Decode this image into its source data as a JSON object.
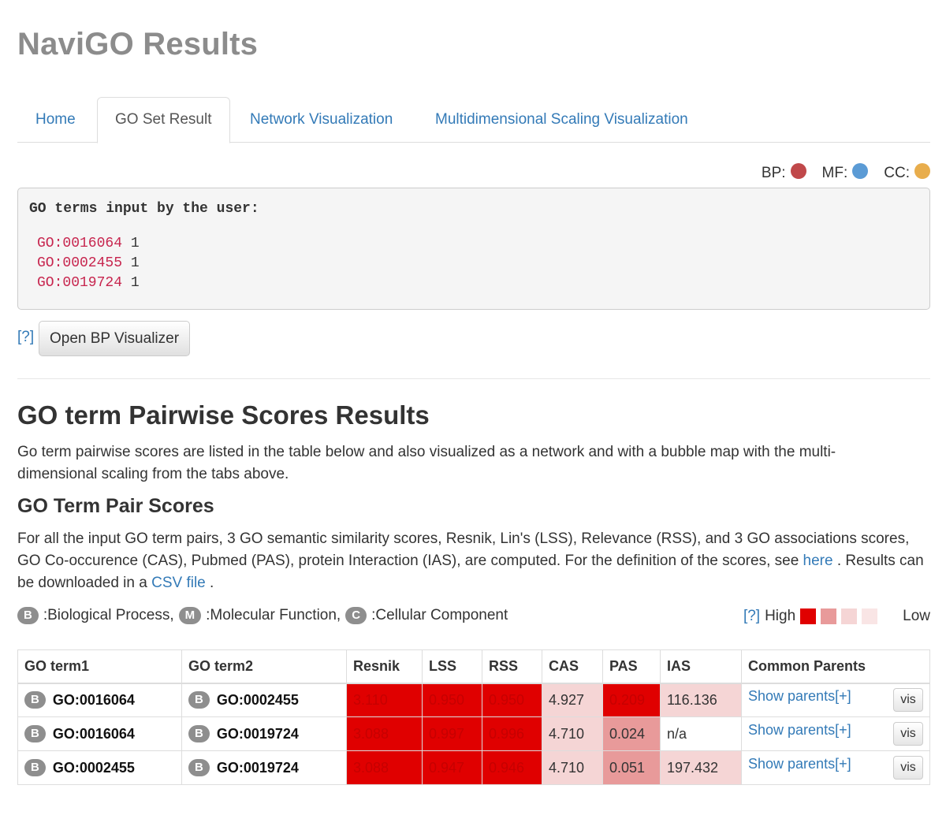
{
  "app_title": "NaviGO Results",
  "tabs": [
    {
      "label": "Home"
    },
    {
      "label": "GO Set Result"
    },
    {
      "label": "Network Visualization"
    },
    {
      "label": "Multidimensional Scaling Visualization"
    }
  ],
  "legend": {
    "bp_label": "BP:",
    "bp_color": "#c0484a",
    "mf_label": "MF:",
    "mf_color": "#5b9bd5",
    "cc_label": "CC:",
    "cc_color": "#e8ad4c"
  },
  "input_box": {
    "header": "GO terms input by the user:",
    "lines": [
      {
        "id": "GO:0016064",
        "value": "1"
      },
      {
        "id": "GO:0002455",
        "value": "1"
      },
      {
        "id": "GO:0019724",
        "value": "1"
      }
    ]
  },
  "help_label": "[?]",
  "open_bp_button": "Open BP Visualizer",
  "section_title": "GO term Pairwise Scores Results",
  "section_desc": "Go term pairwise scores are listed in the table below and also visualized as a network and with a bubble map with the multi-dimensional scaling from the tabs above.",
  "sub_title": "GO Term Pair Scores",
  "desc2": {
    "part1": "For all the input GO term pairs, 3 GO semantic similarity scores, Resnik, Lin's (LSS), Relevance (RSS), and 3 GO associations scores, GO Co-occurence (CAS), Pubmed (PAS), protein Interaction (IAS), are computed. For the definition of the scores, see ",
    "here_link": "here",
    "part2": " . Results can be downloaded in a ",
    "csv_link": "CSV file",
    "part3": " ."
  },
  "ontology_legend": {
    "b_badge": "B",
    "b_label": ":Biological Process,",
    "m_badge": "M",
    "m_label": ":Molecular Function,",
    "c_badge": "C",
    "c_label": ":Cellular Component"
  },
  "scale_legend": {
    "help": "[?]",
    "high": "High",
    "low": "Low",
    "colors": [
      "#e00000",
      "#e89a9a",
      "#f5d5d5",
      "#f9e5e5"
    ]
  },
  "table": {
    "headers": [
      "GO term1",
      "GO term2",
      "Resnik",
      "LSS",
      "RSS",
      "CAS",
      "PAS",
      "IAS",
      "Common Parents"
    ],
    "show_parents": "Show parents[+]",
    "vis": "vis",
    "rows": [
      {
        "b1": "B",
        "term1": "GO:0016064",
        "b2": "B",
        "term2": "GO:0002455",
        "resnik": "3.110",
        "lss": "0.950",
        "rss": "0.950",
        "cas": "4.927",
        "pas": "0.209",
        "ias": "116.136"
      },
      {
        "b1": "B",
        "term1": "GO:0016064",
        "b2": "B",
        "term2": "GO:0019724",
        "resnik": "3.088",
        "lss": "0.997",
        "rss": "0.996",
        "cas": "4.710",
        "pas": "0.024",
        "ias": "n/a"
      },
      {
        "b1": "B",
        "term1": "GO:0002455",
        "b2": "B",
        "term2": "GO:0019724",
        "resnik": "3.088",
        "lss": "0.947",
        "rss": "0.946",
        "cas": "4.710",
        "pas": "0.051",
        "ias": "197.432"
      }
    ]
  }
}
